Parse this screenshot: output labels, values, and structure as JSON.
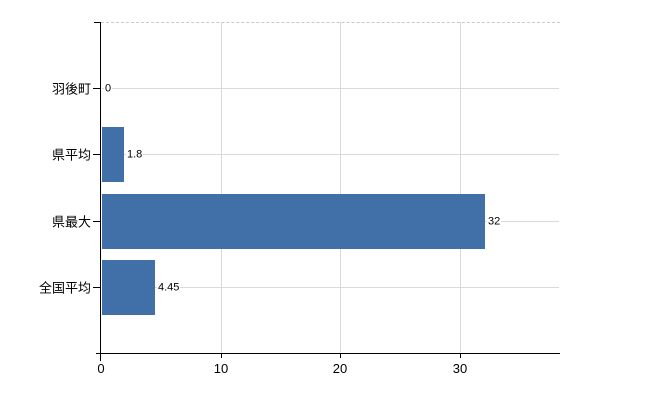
{
  "chart_data": {
    "type": "bar",
    "orientation": "horizontal",
    "title": "",
    "xlabel": "",
    "ylabel": "",
    "categories": [
      "羽後町",
      "県平均",
      "県最大",
      "全国平均"
    ],
    "values": [
      0,
      1.8,
      32,
      4.45
    ],
    "value_labels": [
      "0",
      "1.8",
      "32",
      "4.45"
    ],
    "x_ticks": [
      0,
      10,
      20,
      30
    ],
    "x_tick_labels": [
      "0",
      "10",
      "20",
      "30"
    ],
    "xlim": [
      0,
      38.4
    ],
    "grid": true,
    "legend": false,
    "colors": {
      "bar": "#4170A9",
      "grid_vertical": "#D9D9D9",
      "grid_horizontal": "#D9DCD6",
      "plot_border_top": "#C9C9C9",
      "axis": "#000000",
      "text": "#000000",
      "background": "#FFFFFF"
    }
  }
}
